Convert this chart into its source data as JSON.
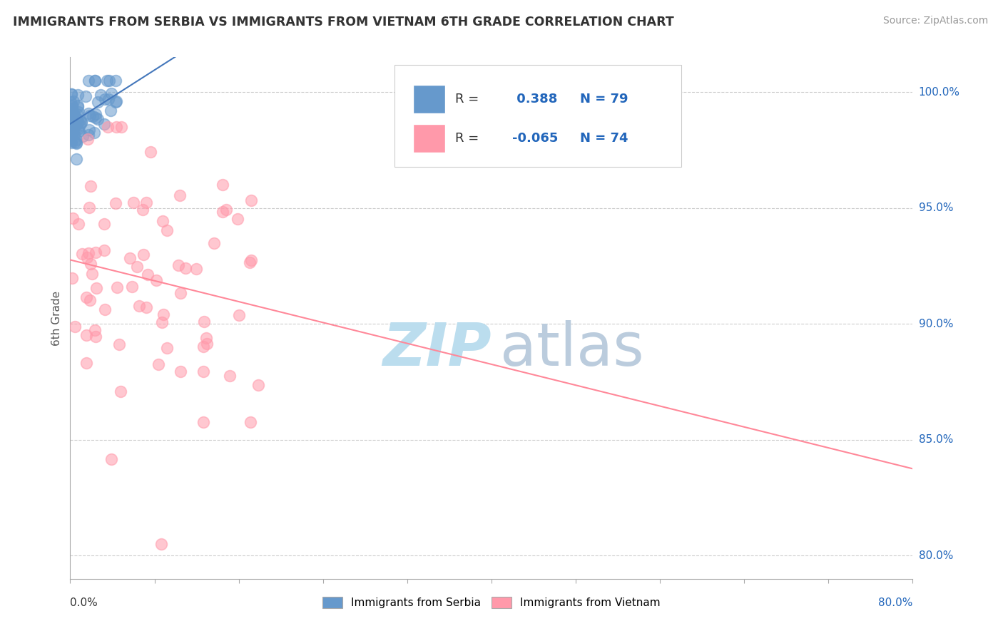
{
  "title": "IMMIGRANTS FROM SERBIA VS IMMIGRANTS FROM VIETNAM 6TH GRADE CORRELATION CHART",
  "source_text": "Source: ZipAtlas.com",
  "ylabel": "6th Grade",
  "serbia_R": 0.388,
  "serbia_N": 79,
  "vietnam_R": -0.065,
  "vietnam_N": 74,
  "serbia_color": "#6699CC",
  "vietnam_color": "#FF99AA",
  "serbia_line_color": "#4477BB",
  "vietnam_line_color": "#FF8899",
  "watermark_zip_color": "#BBDDEE",
  "watermark_atlas_color": "#BBCCDD",
  "legend_label_serbia": "Immigrants from Serbia",
  "legend_label_vietnam": "Immigrants from Vietnam",
  "x_min": 0.0,
  "x_max": 80.0,
  "y_min": 79.0,
  "y_max": 101.5,
  "y_ticks": [
    80.0,
    85.0,
    90.0,
    95.0,
    100.0
  ],
  "grid_color": "#CCCCCC",
  "axis_color": "#AAAAAA"
}
